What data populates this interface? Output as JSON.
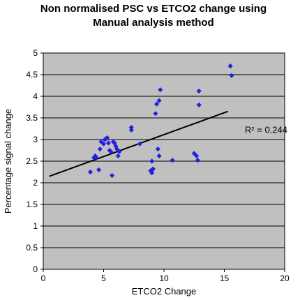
{
  "chart_data": {
    "type": "scatter",
    "title_lines": [
      "Non normalised PSC vs ETCO2 change using",
      "Manual analysis method"
    ],
    "xlabel": "ETCO2 Change",
    "ylabel": "Percentage signal change",
    "xlim": [
      0,
      20
    ],
    "ylim": [
      0,
      5
    ],
    "xticks": [
      0,
      5,
      10,
      15,
      20
    ],
    "yticks": [
      0,
      0.5,
      1,
      1.5,
      2,
      2.5,
      3,
      3.5,
      4,
      4.5,
      5
    ],
    "ytick_labels": [
      "0",
      "0.5",
      "1",
      "1.5",
      "2",
      "2.5",
      "3",
      "3.5",
      "4",
      "4.5",
      "5"
    ],
    "grid": "horizontal",
    "plot_background": "#c0c0c0",
    "marker_color": "#2222dd",
    "trend_color": "#000000",
    "points": [
      {
        "x": 3.9,
        "y": 2.25
      },
      {
        "x": 4.2,
        "y": 2.58
      },
      {
        "x": 4.3,
        "y": 2.62
      },
      {
        "x": 4.4,
        "y": 2.58
      },
      {
        "x": 4.6,
        "y": 2.3
      },
      {
        "x": 4.7,
        "y": 2.78
      },
      {
        "x": 4.8,
        "y": 2.95
      },
      {
        "x": 5.0,
        "y": 2.9
      },
      {
        "x": 5.1,
        "y": 3.0
      },
      {
        "x": 5.2,
        "y": 3.02
      },
      {
        "x": 5.3,
        "y": 3.04
      },
      {
        "x": 5.4,
        "y": 2.92
      },
      {
        "x": 5.5,
        "y": 2.75
      },
      {
        "x": 5.6,
        "y": 2.72
      },
      {
        "x": 5.7,
        "y": 2.17
      },
      {
        "x": 5.8,
        "y": 2.95
      },
      {
        "x": 5.9,
        "y": 2.92
      },
      {
        "x": 6.0,
        "y": 2.85
      },
      {
        "x": 6.1,
        "y": 2.78
      },
      {
        "x": 6.2,
        "y": 2.62
      },
      {
        "x": 6.3,
        "y": 2.72
      },
      {
        "x": 7.3,
        "y": 3.28
      },
      {
        "x": 7.3,
        "y": 3.22
      },
      {
        "x": 8.0,
        "y": 2.9
      },
      {
        "x": 8.9,
        "y": 2.28
      },
      {
        "x": 9.0,
        "y": 2.23
      },
      {
        "x": 9.0,
        "y": 2.5
      },
      {
        "x": 9.1,
        "y": 2.32
      },
      {
        "x": 9.3,
        "y": 3.6
      },
      {
        "x": 9.4,
        "y": 3.82
      },
      {
        "x": 9.5,
        "y": 2.78
      },
      {
        "x": 9.6,
        "y": 2.62
      },
      {
        "x": 9.6,
        "y": 3.9
      },
      {
        "x": 9.7,
        "y": 4.15
      },
      {
        "x": 10.7,
        "y": 2.52
      },
      {
        "x": 12.5,
        "y": 2.68
      },
      {
        "x": 12.7,
        "y": 2.62
      },
      {
        "x": 12.8,
        "y": 2.52
      },
      {
        "x": 12.9,
        "y": 4.12
      },
      {
        "x": 12.9,
        "y": 3.8
      },
      {
        "x": 15.5,
        "y": 4.7
      },
      {
        "x": 15.6,
        "y": 4.48
      }
    ],
    "trendline": {
      "x": [
        0.5,
        15.3
      ],
      "y": [
        2.15,
        3.65
      ]
    },
    "annotation": {
      "text": "R² = 0.244",
      "x": 16.7,
      "y": 3.15
    }
  }
}
